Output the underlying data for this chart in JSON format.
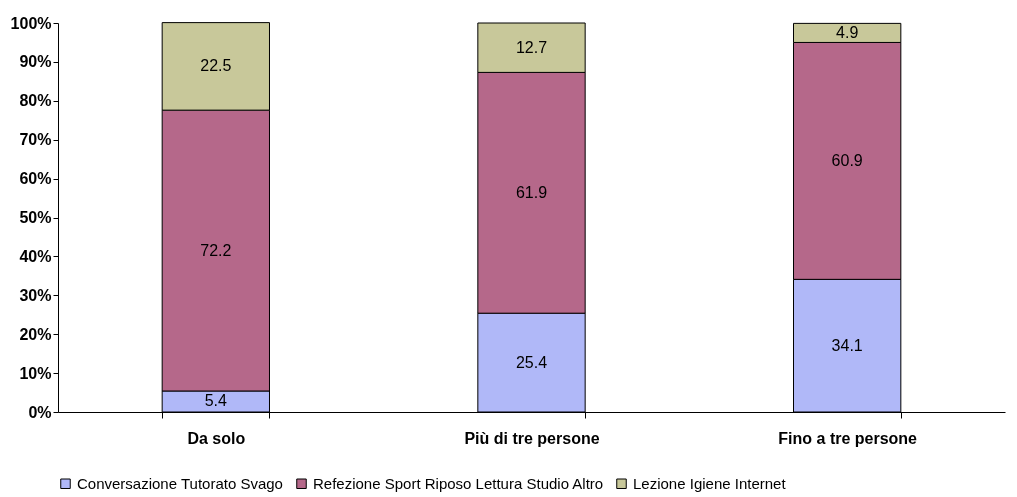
{
  "chart_data": {
    "type": "bar",
    "stacked": true,
    "categories": [
      "Da solo",
      "Più di tre persone",
      "Fino a tre persone"
    ],
    "series": [
      {
        "name": "Conversazione Tutorato Svago",
        "color": "#b0b8f8",
        "values": [
          5.4,
          25.4,
          34.1
        ]
      },
      {
        "name": "Refezione Sport Riposo Lettura Studio Altro",
        "color": "#b5688a",
        "values": [
          72.2,
          61.9,
          60.9
        ]
      },
      {
        "name": "Lezione Igiene Internet",
        "color": "#c8c89a",
        "values": [
          22.5,
          12.7,
          4.9
        ]
      }
    ],
    "ylim": [
      0,
      100
    ],
    "yticks": [
      {
        "value": 0,
        "label": "0%"
      },
      {
        "value": 10,
        "label": "10%"
      },
      {
        "value": 20,
        "label": "20%"
      },
      {
        "value": 30,
        "label": "30%"
      },
      {
        "value": 40,
        "label": "40%"
      },
      {
        "value": 50,
        "label": "50%"
      },
      {
        "value": 60,
        "label": "60%"
      },
      {
        "value": 70,
        "label": "70%"
      },
      {
        "value": 80,
        "label": "80%"
      },
      {
        "value": 90,
        "label": "90%"
      },
      {
        "value": 100,
        "label": "100%"
      }
    ],
    "data_labels": true,
    "grid": false,
    "legend": "bottom"
  }
}
